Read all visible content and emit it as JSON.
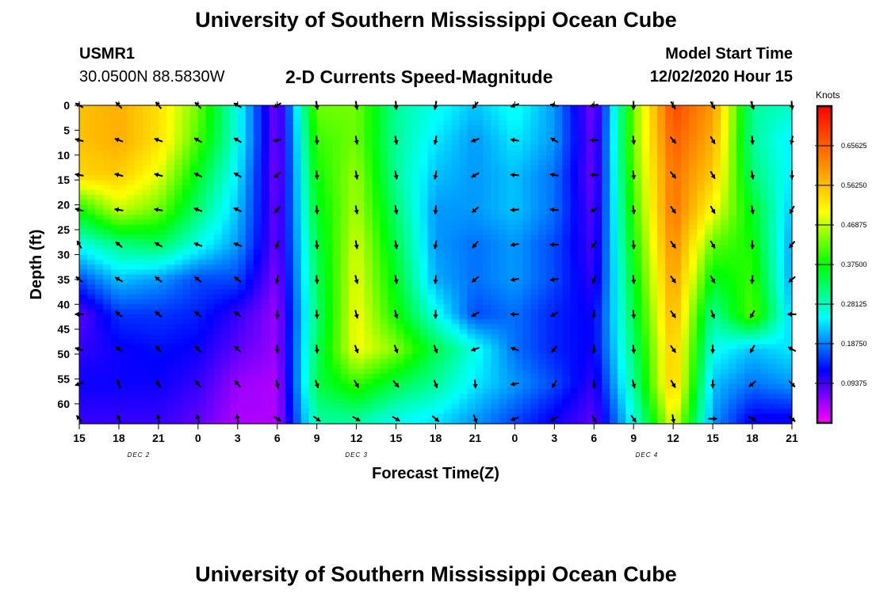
{
  "header": {
    "title": "University of Southern Mississippi Ocean Cube",
    "station": "USMR1",
    "coords": "30.0500N 88.5830W",
    "plot_title": "2-D Currents Speed-Magnitude",
    "model_label": "Model Start Time",
    "model_time": "12/02/2020 Hour 15"
  },
  "footer": {
    "title": "University of Southern Mississippi Ocean Cube"
  },
  "colors": {
    "scale": [
      "#ff00ff",
      "#0000ff",
      "#00ffff",
      "#00ff00",
      "#ffff00",
      "#ff8000",
      "#ff0000"
    ],
    "arrow": "#000000"
  },
  "chart_data": {
    "type": "heatmap",
    "xlabel": "Forecast Time(Z)",
    "ylabel": "Depth (ft)",
    "x_tick_labels": [
      "15",
      "18",
      "21",
      "0",
      "3",
      "6",
      "9",
      "12",
      "15",
      "18",
      "21",
      "0",
      "3",
      "6",
      "9",
      "12",
      "15",
      "18",
      "21"
    ],
    "x_hours": [
      15,
      18,
      21,
      24,
      27,
      30,
      33,
      36,
      39,
      42,
      45,
      48,
      51,
      54,
      57,
      60,
      63,
      66,
      69
    ],
    "day_labels": [
      {
        "text": "DEC 2",
        "hour": 19.5
      },
      {
        "text": "DEC 3",
        "hour": 36
      },
      {
        "text": "DEC 4",
        "hour": 58
      }
    ],
    "y_ticks": [
      0,
      5,
      10,
      15,
      20,
      25,
      30,
      35,
      40,
      45,
      50,
      55,
      60
    ],
    "ylim": [
      0,
      64
    ],
    "y_inverted": true,
    "colorbar": {
      "title": "Knots",
      "ticks": [
        "0.65625",
        "0.56250",
        "0.46875",
        "0.37500",
        "0.28125",
        "0.18750",
        "0.09375"
      ],
      "tick_values": [
        0.65625,
        0.5625,
        0.46875,
        0.375,
        0.28125,
        0.1875,
        0.09375
      ],
      "range": [
        0.0,
        0.75
      ]
    },
    "speed_grid": {
      "depths": [
        0,
        7,
        14,
        21,
        28,
        35,
        42,
        49,
        56,
        63
      ],
      "hours": [
        15,
        18,
        21,
        24,
        27,
        30,
        33,
        36,
        39,
        42,
        45,
        48,
        51,
        54,
        57,
        60,
        63,
        66,
        69
      ],
      "values": [
        [
          0.56,
          0.58,
          0.53,
          0.43,
          0.26,
          0.06,
          0.43,
          0.43,
          0.3,
          0.26,
          0.22,
          0.26,
          0.2,
          0.06,
          0.43,
          0.68,
          0.6,
          0.3,
          0.28
        ],
        [
          0.56,
          0.58,
          0.53,
          0.41,
          0.26,
          0.06,
          0.4,
          0.43,
          0.3,
          0.24,
          0.2,
          0.24,
          0.2,
          0.07,
          0.43,
          0.66,
          0.58,
          0.3,
          0.24
        ],
        [
          0.54,
          0.55,
          0.49,
          0.36,
          0.24,
          0.06,
          0.38,
          0.45,
          0.3,
          0.22,
          0.2,
          0.22,
          0.18,
          0.07,
          0.42,
          0.64,
          0.55,
          0.32,
          0.24
        ],
        [
          0.38,
          0.47,
          0.43,
          0.32,
          0.22,
          0.07,
          0.36,
          0.46,
          0.32,
          0.2,
          0.2,
          0.22,
          0.18,
          0.08,
          0.4,
          0.64,
          0.5,
          0.36,
          0.22
        ],
        [
          0.26,
          0.31,
          0.33,
          0.26,
          0.2,
          0.07,
          0.34,
          0.48,
          0.34,
          0.2,
          0.18,
          0.2,
          0.16,
          0.09,
          0.38,
          0.62,
          0.42,
          0.38,
          0.2
        ],
        [
          0.16,
          0.22,
          0.2,
          0.16,
          0.16,
          0.06,
          0.33,
          0.49,
          0.36,
          0.21,
          0.18,
          0.2,
          0.16,
          0.1,
          0.36,
          0.6,
          0.36,
          0.4,
          0.2
        ],
        [
          0.08,
          0.15,
          0.15,
          0.14,
          0.1,
          0.05,
          0.32,
          0.5,
          0.38,
          0.26,
          0.16,
          0.18,
          0.14,
          0.12,
          0.34,
          0.58,
          0.3,
          0.42,
          0.22
        ],
        [
          0.1,
          0.12,
          0.13,
          0.12,
          0.08,
          0.05,
          0.33,
          0.5,
          0.44,
          0.34,
          0.26,
          0.18,
          0.14,
          0.12,
          0.32,
          0.56,
          0.26,
          0.22,
          0.24
        ],
        [
          0.12,
          0.12,
          0.12,
          0.1,
          0.05,
          0.04,
          0.34,
          0.4,
          0.34,
          0.3,
          0.24,
          0.2,
          0.16,
          0.1,
          0.3,
          0.56,
          0.22,
          0.18,
          0.2
        ],
        [
          0.1,
          0.1,
          0.1,
          0.08,
          0.04,
          0.04,
          0.3,
          0.3,
          0.26,
          0.24,
          0.2,
          0.16,
          0.12,
          0.08,
          0.26,
          0.5,
          0.2,
          0.12,
          0.12
        ]
      ]
    },
    "vector_depths": [
      0,
      7,
      14,
      21,
      28,
      35,
      42,
      49,
      56,
      63
    ],
    "vector_hours": [
      15,
      18,
      21,
      24,
      27,
      30,
      33,
      36,
      39,
      42,
      45,
      48,
      51,
      54,
      57,
      60,
      63,
      66,
      69
    ],
    "vector_dirs_deg": [
      [
        300,
        315,
        320,
        315,
        300,
        240,
        170,
        170,
        175,
        190,
        220,
        250,
        280,
        260,
        180,
        150,
        150,
        160,
        175
      ],
      [
        285,
        290,
        290,
        300,
        300,
        260,
        175,
        170,
        170,
        190,
        250,
        280,
        300,
        270,
        175,
        140,
        150,
        175,
        190
      ],
      [
        280,
        285,
        285,
        295,
        300,
        230,
        175,
        170,
        170,
        190,
        240,
        275,
        280,
        270,
        175,
        140,
        150,
        170,
        180
      ],
      [
        285,
        280,
        280,
        290,
        295,
        220,
        175,
        170,
        170,
        185,
        230,
        265,
        275,
        240,
        175,
        145,
        150,
        170,
        210
      ],
      [
        330,
        310,
        300,
        290,
        290,
        200,
        175,
        170,
        170,
        190,
        220,
        260,
        270,
        220,
        175,
        145,
        150,
        180,
        220
      ],
      [
        310,
        300,
        310,
        310,
        310,
        190,
        175,
        165,
        170,
        185,
        230,
        260,
        260,
        200,
        175,
        145,
        150,
        185,
        230
      ],
      [
        270,
        310,
        310,
        310,
        310,
        180,
        175,
        165,
        165,
        180,
        240,
        270,
        240,
        190,
        175,
        145,
        160,
        210,
        270
      ],
      [
        285,
        310,
        320,
        320,
        315,
        180,
        175,
        160,
        160,
        160,
        250,
        290,
        220,
        180,
        175,
        145,
        180,
        210,
        300
      ],
      [
        250,
        340,
        330,
        320,
        320,
        165,
        160,
        150,
        140,
        160,
        175,
        260,
        210,
        175,
        165,
        150,
        180,
        230,
        135
      ],
      [
        320,
        340,
        350,
        345,
        350,
        120,
        125,
        120,
        120,
        130,
        160,
        250,
        240,
        150,
        145,
        170,
        90,
        120,
        130
      ]
    ]
  }
}
